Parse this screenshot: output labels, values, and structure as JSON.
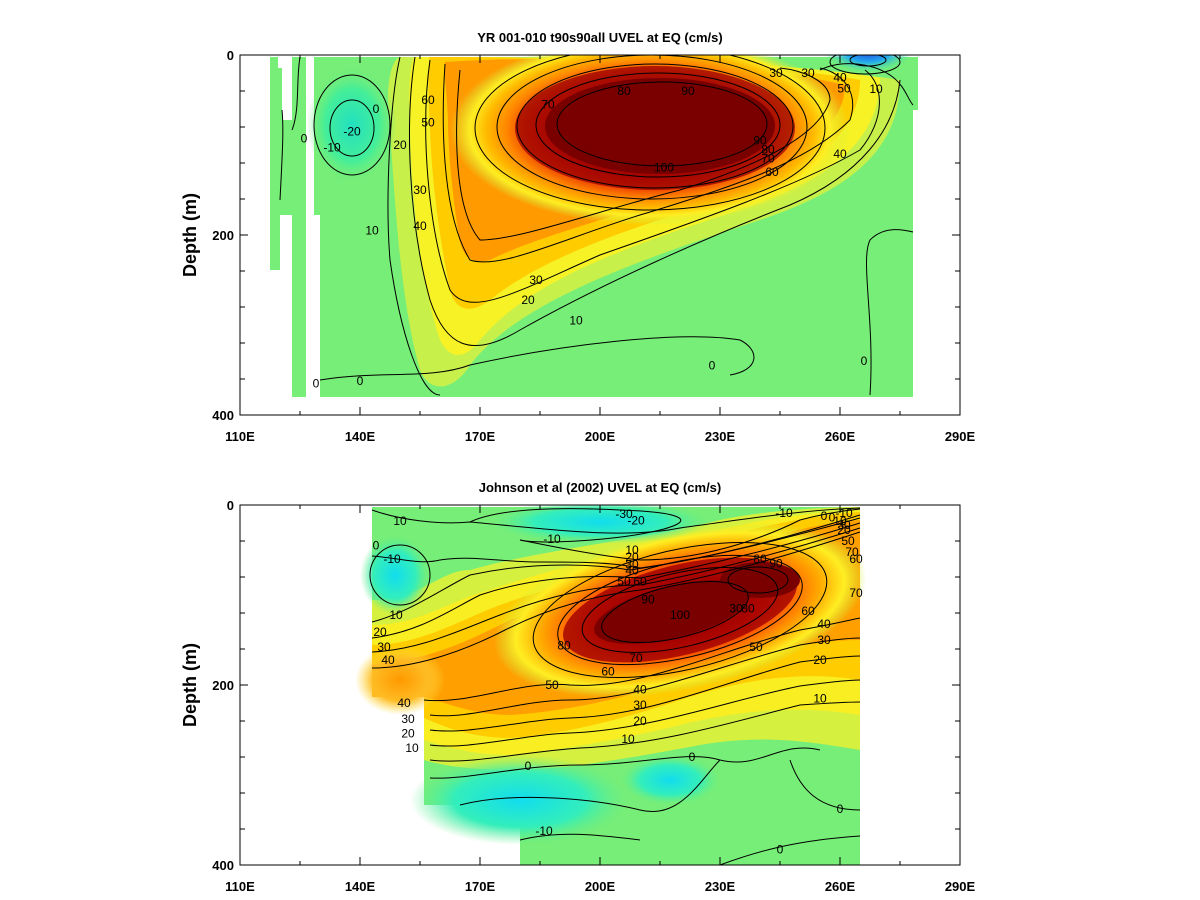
{
  "chart_data": [
    {
      "type": "heatmap",
      "subtype": "filled-contour",
      "title": "YR 001-010 t90s90all UVEL at EQ (cm/s)",
      "xlabel": "",
      "ylabel": "Depth (m)",
      "xlim": [
        110,
        290
      ],
      "ylim": [
        400,
        0
      ],
      "y_inverted": true,
      "xticks": [
        "110E",
        "140E",
        "170E",
        "200E",
        "230E",
        "260E",
        "290E"
      ],
      "yticks": [
        "0",
        "200",
        "400"
      ],
      "data_extent": {
        "lon": [
          116,
          279
        ],
        "depth": [
          0,
          380
        ]
      },
      "contour_labels": [
        {
          "text": "90",
          "lon": 222,
          "depth": 40
        },
        {
          "text": "80",
          "lon": 206,
          "depth": 40
        },
        {
          "text": "70",
          "lon": 187,
          "depth": 55
        },
        {
          "text": "60",
          "lon": 157,
          "depth": 50
        },
        {
          "text": "50",
          "lon": 157,
          "depth": 75
        },
        {
          "text": "100",
          "lon": 216,
          "depth": 125
        },
        {
          "text": "90",
          "lon": 240,
          "depth": 95
        },
        {
          "text": "80",
          "lon": 242,
          "depth": 105
        },
        {
          "text": "70",
          "lon": 242,
          "depth": 115
        },
        {
          "text": "60",
          "lon": 243,
          "depth": 130
        },
        {
          "text": "40",
          "lon": 260,
          "depth": 110
        },
        {
          "text": "30",
          "lon": 244,
          "depth": 20
        },
        {
          "text": "30",
          "lon": 252,
          "depth": 20
        },
        {
          "text": "40",
          "lon": 260,
          "depth": 25
        },
        {
          "text": "50",
          "lon": 261,
          "depth": 37
        },
        {
          "text": "10",
          "lon": 269,
          "depth": 38
        },
        {
          "text": "0",
          "lon": 144,
          "depth": 60
        },
        {
          "text": "-10",
          "lon": 133,
          "depth": 103
        },
        {
          "text": "-20",
          "lon": 138,
          "depth": 85
        },
        {
          "text": "0",
          "lon": 126,
          "depth": 93
        },
        {
          "text": "20",
          "lon": 150,
          "depth": 100
        },
        {
          "text": "30",
          "lon": 155,
          "depth": 150
        },
        {
          "text": "40",
          "lon": 155,
          "depth": 190
        },
        {
          "text": "10",
          "lon": 143,
          "depth": 195
        },
        {
          "text": "30",
          "lon": 184,
          "depth": 250
        },
        {
          "text": "20",
          "lon": 182,
          "depth": 272
        },
        {
          "text": "10",
          "lon": 194,
          "depth": 295
        },
        {
          "text": "0",
          "lon": 140,
          "depth": 362
        },
        {
          "text": "0",
          "lon": 129,
          "depth": 365
        },
        {
          "text": "0",
          "lon": 228,
          "depth": 345
        },
        {
          "text": "0",
          "lon": 266,
          "depth": 340
        }
      ]
    },
    {
      "type": "heatmap",
      "subtype": "filled-contour",
      "title": "Johnson et al (2002) UVEL at EQ (cm/s)",
      "xlabel": "",
      "ylabel": "Depth (m)",
      "xlim": [
        110,
        290
      ],
      "ylim": [
        400,
        0
      ],
      "y_inverted": true,
      "xticks": [
        "110E",
        "140E",
        "170E",
        "200E",
        "230E",
        "260E",
        "290E"
      ],
      "yticks": [
        "0",
        "200",
        "400"
      ],
      "data_extent": {
        "lon": [
          143,
          265
        ],
        "depth": [
          0,
          400
        ]
      },
      "contour_labels": [
        {
          "text": "10",
          "lon": 150,
          "depth": 18
        },
        {
          "text": "0",
          "lon": 144,
          "depth": 45
        },
        {
          "text": "-10",
          "lon": 148,
          "depth": 60
        },
        {
          "text": "-30",
          "lon": 206,
          "depth": 10
        },
        {
          "text": "-20",
          "lon": 209,
          "depth": 17
        },
        {
          "text": "-10",
          "lon": 188,
          "depth": 38
        },
        {
          "text": "-10",
          "lon": 246,
          "depth": 9
        },
        {
          "text": "0",
          "lon": 256,
          "depth": 12
        },
        {
          "text": "-10",
          "lon": 261,
          "depth": 9
        },
        {
          "text": "10",
          "lon": 208,
          "depth": 50
        },
        {
          "text": "20",
          "lon": 208,
          "depth": 58
        },
        {
          "text": "30",
          "lon": 208,
          "depth": 66
        },
        {
          "text": "40",
          "lon": 208,
          "depth": 73
        },
        {
          "text": "50",
          "lon": 206,
          "depth": 85
        },
        {
          "text": "60",
          "lon": 210,
          "depth": 85
        },
        {
          "text": "90",
          "lon": 212,
          "depth": 105
        },
        {
          "text": "100",
          "lon": 220,
          "depth": 122
        },
        {
          "text": "80",
          "lon": 240,
          "depth": 60
        },
        {
          "text": "90",
          "lon": 244,
          "depth": 65
        },
        {
          "text": "30",
          "lon": 234,
          "depth": 115
        },
        {
          "text": "80",
          "lon": 237,
          "depth": 115
        },
        {
          "text": "60",
          "lon": 252,
          "depth": 118
        },
        {
          "text": "70",
          "lon": 264,
          "depth": 98
        },
        {
          "text": "40",
          "lon": 256,
          "depth": 132
        },
        {
          "text": "30",
          "lon": 256,
          "depth": 150
        },
        {
          "text": "20",
          "lon": 255,
          "depth": 172
        },
        {
          "text": "10",
          "lon": 255,
          "depth": 215
        },
        {
          "text": "50",
          "lon": 239,
          "depth": 158
        },
        {
          "text": "50",
          "lon": 262,
          "depth": 40
        },
        {
          "text": "60",
          "lon": 264,
          "depth": 60
        },
        {
          "text": "70",
          "lon": 263,
          "depth": 52
        },
        {
          "text": "30",
          "lon": 261,
          "depth": 22
        },
        {
          "text": "20",
          "lon": 261,
          "depth": 28
        },
        {
          "text": "10",
          "lon": 260,
          "depth": 18
        },
        {
          "text": "0",
          "lon": 258,
          "depth": 14
        },
        {
          "text": "80",
          "lon": 191,
          "depth": 156
        },
        {
          "text": "70",
          "lon": 209,
          "depth": 170
        },
        {
          "text": "60",
          "lon": 202,
          "depth": 185
        },
        {
          "text": "50",
          "lon": 188,
          "depth": 200
        },
        {
          "text": "40",
          "lon": 210,
          "depth": 205
        },
        {
          "text": "30",
          "lon": 210,
          "depth": 222
        },
        {
          "text": "20",
          "lon": 210,
          "depth": 240
        },
        {
          "text": "10",
          "lon": 207,
          "depth": 260
        },
        {
          "text": "10",
          "lon": 149,
          "depth": 122
        },
        {
          "text": "20",
          "lon": 145,
          "depth": 141
        },
        {
          "text": "30",
          "lon": 146,
          "depth": 158
        },
        {
          "text": "40",
          "lon": 147,
          "depth": 172
        },
        {
          "text": "40",
          "lon": 151,
          "depth": 220
        },
        {
          "text": "30",
          "lon": 152,
          "depth": 238
        },
        {
          "text": "20",
          "lon": 152,
          "depth": 254
        },
        {
          "text": "10",
          "lon": 153,
          "depth": 270
        },
        {
          "text": "0",
          "lon": 182,
          "depth": 290
        },
        {
          "text": "0",
          "lon": 223,
          "depth": 280
        },
        {
          "text": "-10",
          "lon": 186,
          "depth": 362
        },
        {
          "text": "0",
          "lon": 260,
          "depth": 338
        },
        {
          "text": "0",
          "lon": 245,
          "depth": 383
        }
      ]
    }
  ]
}
